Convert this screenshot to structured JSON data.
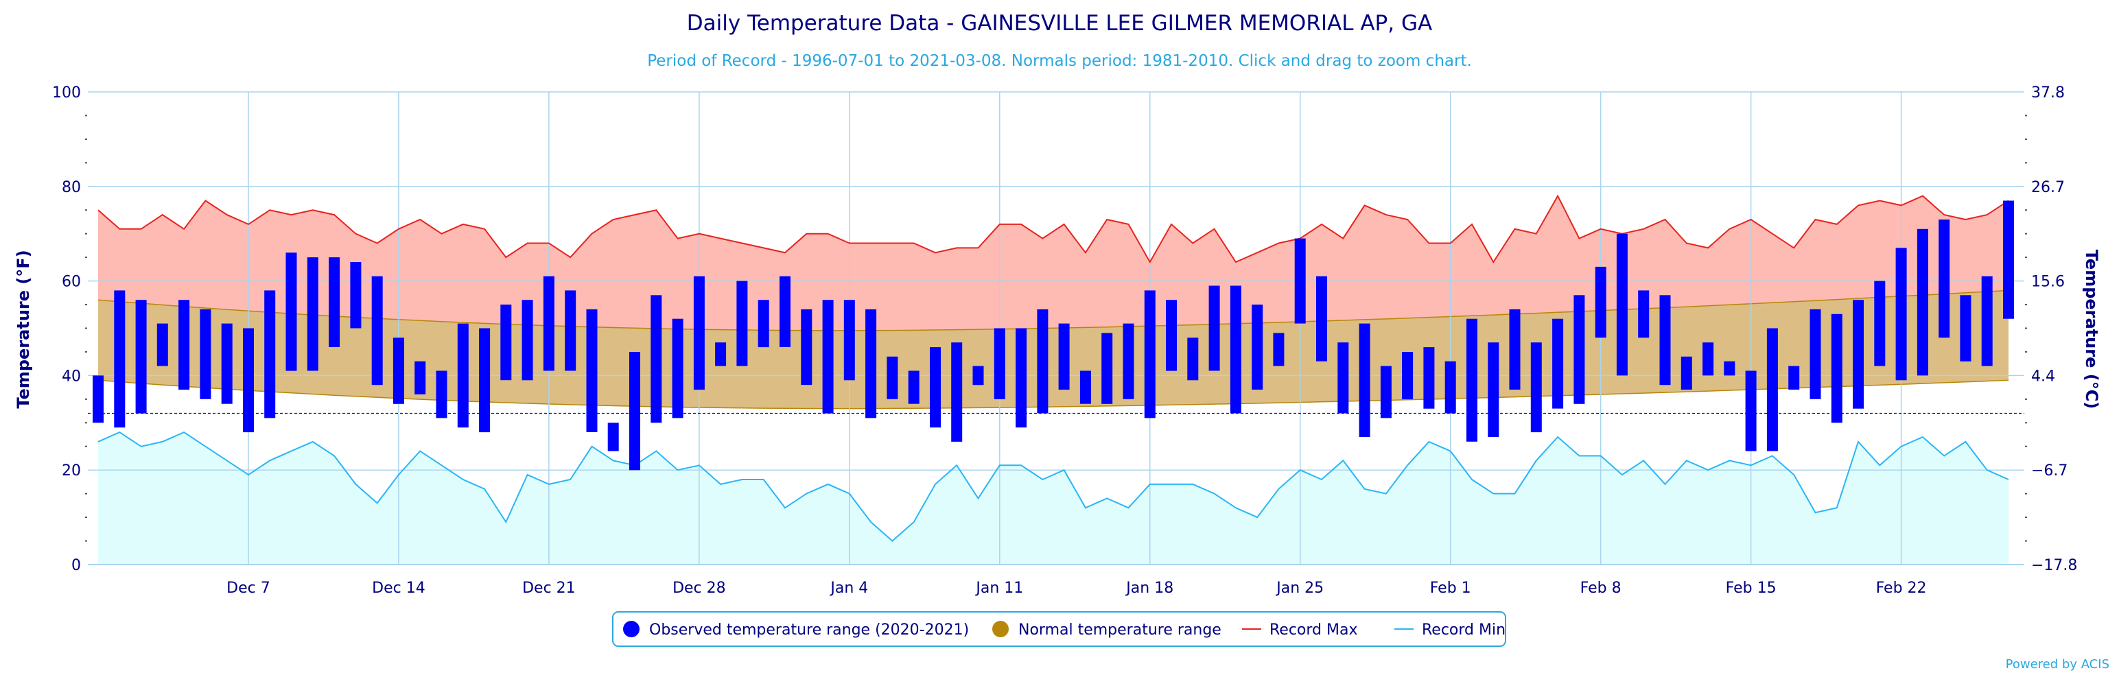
{
  "chart_data": {
    "type": "bar",
    "title": "Daily Temperature Data - GAINESVILLE LEE GILMER MEMORIAL AP, GA",
    "subtitle": "Period of Record - 1996-07-01 to 2021-03-08. Normals period: 1981-2010. Click and drag to zoom chart.",
    "ylabel": "Temperature (°F)",
    "ylabel_right": "Temperature (°C)",
    "ylim": [
      0,
      100
    ],
    "y_ticks": [
      "0",
      "20",
      "40",
      "60",
      "80",
      "100"
    ],
    "y_ticks_right": [
      "−17.8",
      "−6.7",
      "4.4",
      "15.6",
      "26.7",
      "37.8"
    ],
    "freezing_line_f": 32,
    "x_start": "2020-11-30",
    "x_ticks": [
      {
        "label": "Dec 7",
        "day": 7
      },
      {
        "label": "Dec 14",
        "day": 14
      },
      {
        "label": "Dec 21",
        "day": 21
      },
      {
        "label": "Dec 28",
        "day": 28
      },
      {
        "label": "Jan 4",
        "day": 35
      },
      {
        "label": "Jan 11",
        "day": 42
      },
      {
        "label": "Jan 18",
        "day": 49
      },
      {
        "label": "Jan 25",
        "day": 56
      },
      {
        "label": "Feb 1",
        "day": 63
      },
      {
        "label": "Feb 8",
        "day": 70
      },
      {
        "label": "Feb 15",
        "day": 77
      },
      {
        "label": "Feb 22",
        "day": 84
      }
    ],
    "grid": true,
    "legend_position": "bottom-center",
    "series": [
      {
        "name": "Observed temperature range (2020-2021)",
        "type": "range-bar",
        "color": "#0000ff",
        "low": [
          30,
          29,
          32,
          42,
          37,
          35,
          34,
          28,
          31,
          41,
          41,
          46,
          50,
          38,
          34,
          36,
          31,
          29,
          28,
          39,
          39,
          41,
          41,
          28,
          24,
          20,
          30,
          31,
          37,
          42,
          42,
          46,
          46,
          38,
          32,
          39,
          31,
          35,
          34,
          29,
          26,
          38,
          35,
          29,
          32,
          37,
          34,
          34,
          35,
          31,
          41,
          39,
          41,
          32,
          37,
          42,
          51,
          43,
          32,
          27,
          31,
          35,
          33,
          32,
          26,
          27,
          37,
          28,
          33,
          34,
          48,
          40,
          48,
          38,
          37,
          40,
          40,
          24,
          24,
          37,
          35,
          30,
          33,
          42,
          39,
          40,
          48,
          43,
          42,
          52
        ],
        "high": [
          40,
          58,
          56,
          51,
          56,
          54,
          51,
          50,
          58,
          66,
          65,
          65,
          64,
          61,
          48,
          43,
          41,
          51,
          50,
          55,
          56,
          61,
          58,
          54,
          30,
          45,
          57,
          52,
          61,
          47,
          60,
          56,
          61,
          54,
          56,
          56,
          54,
          44,
          41,
          46,
          47,
          42,
          50,
          50,
          54,
          51,
          41,
          49,
          51,
          58,
          56,
          48,
          59,
          59,
          55,
          49,
          69,
          61,
          47,
          51,
          42,
          45,
          46,
          43,
          52,
          47,
          54,
          47,
          52,
          57,
          63,
          70,
          58,
          57,
          44,
          47,
          43,
          41,
          50,
          42,
          54,
          53,
          56,
          60,
          67,
          71,
          73,
          57,
          61,
          77
        ]
      },
      {
        "name": "Normal temperature range",
        "type": "band",
        "color": "#b8860b",
        "normal_high_start": 56,
        "normal_high_min": 49.5,
        "normal_high_end": 58,
        "normal_low_start": 39,
        "normal_low_min": 33,
        "normal_low_end": 39
      },
      {
        "name": "Record Max",
        "type": "line",
        "color": "#e8231e",
        "values": [
          75,
          71,
          71,
          74,
          71,
          77,
          74,
          72,
          75,
          74,
          75,
          74,
          70,
          68,
          71,
          73,
          70,
          72,
          71,
          65,
          68,
          68,
          65,
          70,
          73,
          74,
          75,
          69,
          70,
          69,
          68,
          67,
          66,
          70,
          70,
          68,
          68,
          68,
          68,
          66,
          67,
          67,
          72,
          72,
          69,
          72,
          66,
          73,
          72,
          64,
          72,
          68,
          71,
          64,
          66,
          68,
          69,
          72,
          69,
          76,
          74,
          73,
          68,
          68,
          72,
          64,
          71,
          70,
          78,
          69,
          71,
          70,
          71,
          73,
          68,
          67,
          71,
          73,
          70,
          67,
          73,
          72,
          76,
          77,
          76,
          78,
          74,
          73,
          74,
          77
        ]
      },
      {
        "name": "Record Min",
        "type": "line",
        "color": "#29b6f6",
        "values": [
          26,
          28,
          25,
          26,
          28,
          25,
          22,
          19,
          22,
          24,
          26,
          23,
          17,
          13,
          19,
          24,
          21,
          18,
          16,
          9,
          19,
          17,
          18,
          25,
          22,
          21,
          24,
          20,
          21,
          17,
          18,
          18,
          12,
          15,
          17,
          15,
          9,
          5,
          9,
          17,
          21,
          14,
          21,
          21,
          18,
          20,
          12,
          14,
          12,
          17,
          17,
          17,
          15,
          12,
          10,
          16,
          20,
          18,
          22,
          16,
          15,
          21,
          26,
          24,
          18,
          15,
          15,
          22,
          27,
          23,
          23,
          19,
          22,
          17,
          22,
          20,
          22,
          21,
          23,
          19,
          11,
          12,
          26,
          21,
          25,
          27,
          23,
          26,
          20,
          18
        ]
      }
    ]
  },
  "legend": {
    "observed": "Observed temperature range (2020-2021)",
    "normal": "Normal temperature range",
    "record_max": "Record Max",
    "record_min": "Record Min"
  },
  "credit": "Powered by ACIS",
  "colors": {
    "observed": "#0000ff",
    "normal_fill": "#dcbd83",
    "normal_edge": "#b8860b",
    "record_max_fill": "#fdbbb4",
    "record_max_line": "#e8231e",
    "record_min_fill": "#e0fdfd",
    "record_min_line": "#29b6f6",
    "grid": "#a9d4ef",
    "axis_text": "#000080",
    "subtitle": "#29a8e0"
  }
}
